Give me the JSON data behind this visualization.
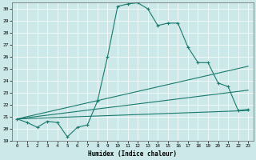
{
  "xlabel": "Humidex (Indice chaleur)",
  "bg_color": "#cce8e8",
  "grid_color": "#ffffff",
  "line_color": "#1a7a6e",
  "xlim": [
    -0.5,
    23.5
  ],
  "ylim": [
    19,
    30.5
  ],
  "xticks": [
    0,
    1,
    2,
    3,
    4,
    5,
    6,
    7,
    8,
    9,
    10,
    11,
    12,
    13,
    14,
    15,
    16,
    17,
    18,
    19,
    20,
    21,
    22,
    23
  ],
  "yticks": [
    19,
    20,
    21,
    22,
    23,
    24,
    25,
    26,
    27,
    28,
    29,
    30
  ],
  "main_x": [
    0,
    1,
    2,
    3,
    4,
    5,
    6,
    7,
    8,
    9,
    10,
    11,
    12,
    13,
    14,
    15,
    16,
    17,
    18,
    19,
    20,
    21,
    22,
    23
  ],
  "main_y": [
    20.8,
    20.5,
    20.1,
    20.6,
    20.5,
    19.3,
    20.1,
    20.3,
    22.3,
    26.0,
    30.2,
    30.4,
    30.5,
    30.0,
    28.6,
    28.8,
    28.8,
    26.8,
    25.5,
    25.5,
    23.8,
    23.5,
    21.5,
    21.6
  ],
  "line2_x": [
    0,
    23
  ],
  "line2_y": [
    20.8,
    21.5
  ],
  "line3_x": [
    0,
    23
  ],
  "line3_y": [
    20.8,
    23.2
  ],
  "line4_x": [
    0,
    23
  ],
  "line4_y": [
    20.8,
    25.2
  ]
}
